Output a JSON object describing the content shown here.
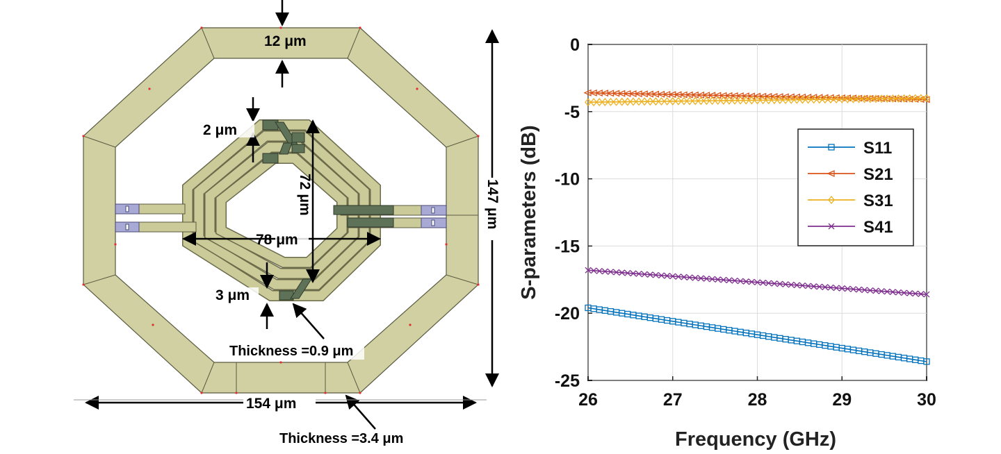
{
  "layout_labels": {
    "top_width": "12 μm",
    "spacing": "2 μm",
    "inner_height": "72 μm",
    "inner_width": "78 μm",
    "outer_height": "147 μm",
    "bottom_width": "3 μm",
    "thickness_inner": "Thickness =0.9 μm",
    "outer_width": "154 μm",
    "thickness_outer": "Thickness =3.4 μm"
  },
  "colors": {
    "outer_ring": "#d0d0a3",
    "inner_trace": "#cbcb99",
    "crossover": "#5e7257",
    "port": "#a9a9d6",
    "s11": "#0072bd",
    "s21": "#d95319",
    "s31": "#edb120",
    "s41": "#7e2f8e"
  },
  "chart_data": {
    "type": "line",
    "xlabel": "Frequency (GHz)",
    "ylabel": "S-parameters (dB)",
    "xlim": [
      26,
      30
    ],
    "ylim": [
      -25,
      0
    ],
    "xticks": [
      26,
      27,
      28,
      29,
      30
    ],
    "yticks": [
      0,
      -5,
      -10,
      -15,
      -20,
      -25
    ],
    "grid": true,
    "legend_position": "right",
    "series": [
      {
        "name": "S11",
        "marker": "square",
        "x_start": 26,
        "x_end": 30,
        "points": 61,
        "y_start": -19.6,
        "y_end": -23.6
      },
      {
        "name": "S21",
        "marker": "triangle-left",
        "x_start": 26,
        "x_end": 30,
        "points": 61,
        "y_start": -3.6,
        "y_end": -4.1
      },
      {
        "name": "S31",
        "marker": "diamond",
        "x_start": 26,
        "x_end": 30,
        "points": 61,
        "y_start": -4.3,
        "y_end": -4.0
      },
      {
        "name": "S41",
        "marker": "x",
        "x_start": 26,
        "x_end": 30,
        "points": 61,
        "y_start": -16.8,
        "y_end": -18.6
      }
    ]
  }
}
